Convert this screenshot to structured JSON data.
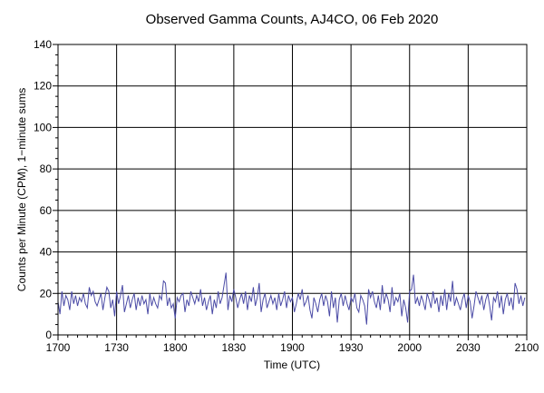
{
  "chart_data": {
    "type": "line",
    "title": "Observed Gamma Counts, AJ4CO, 06 Feb 2020",
    "xlabel": "Time (UTC)",
    "ylabel": "Counts per Minute (CPM), 1−minute sums",
    "xlim": [
      0,
      240
    ],
    "ylim": [
      0,
      140
    ],
    "x_ticks": [
      0,
      30,
      60,
      90,
      120,
      150,
      180,
      210,
      240
    ],
    "x_tick_labels": [
      "1700",
      "1730",
      "1800",
      "1830",
      "1900",
      "1930",
      "2000",
      "2030",
      "2100"
    ],
    "y_ticks": [
      0,
      20,
      40,
      60,
      80,
      100,
      120,
      140
    ],
    "y_tick_labels": [
      "0",
      "20",
      "40",
      "60",
      "80",
      "100",
      "120",
      "140"
    ],
    "grid": true,
    "legend": false,
    "colors": {
      "line": "#4b4ba6",
      "grid": "#000000",
      "axis": "#000000"
    },
    "series": [
      {
        "values": [
          16,
          10,
          21,
          14,
          19,
          17,
          12,
          21,
          15,
          19,
          14,
          18,
          16,
          20,
          15,
          13,
          23,
          19,
          21,
          16,
          14,
          17,
          20,
          12,
          18,
          23,
          21,
          13,
          17,
          9,
          21,
          15,
          19,
          24,
          11,
          15,
          19,
          13,
          17,
          20,
          12,
          18,
          14,
          19,
          15,
          17,
          10,
          20,
          14,
          18,
          15,
          13,
          19,
          17,
          26,
          25,
          14,
          18,
          13,
          15,
          8,
          18,
          16,
          19,
          20,
          11,
          17,
          14,
          21,
          18,
          15,
          19,
          16,
          22,
          14,
          18,
          12,
          16,
          19,
          10,
          17,
          13,
          21,
          15,
          18,
          24,
          30,
          12,
          19,
          16,
          22,
          18,
          13,
          17,
          20,
          15,
          21,
          12,
          19,
          16,
          23,
          14,
          18,
          25,
          11,
          17,
          20,
          13,
          16,
          19,
          15,
          18,
          12,
          20,
          14,
          17,
          21,
          13,
          19,
          16,
          18,
          11,
          15,
          20,
          17,
          22,
          14,
          16,
          19,
          12,
          8,
          18,
          15,
          11,
          17,
          20,
          14,
          19,
          16,
          9,
          21,
          13,
          18,
          6,
          17,
          20,
          14,
          19,
          15,
          12,
          18,
          16,
          20,
          13,
          11,
          19,
          17,
          14,
          5,
          22,
          18,
          21,
          16,
          13,
          19,
          12,
          24,
          15,
          20,
          17,
          11,
          23,
          14,
          18,
          16,
          20,
          9,
          17,
          13,
          6,
          21,
          22,
          29,
          15,
          18,
          14,
          19,
          16,
          12,
          20,
          17,
          13,
          21,
          15,
          18,
          11,
          19,
          14,
          22,
          12,
          20,
          16,
          26,
          14,
          18,
          15,
          12,
          17,
          20,
          13,
          19,
          16,
          8,
          14,
          21,
          18,
          15,
          19,
          12,
          17,
          20,
          14,
          7,
          18,
          16,
          21,
          13,
          19,
          10,
          17,
          20,
          14,
          18,
          12,
          25,
          22,
          15,
          19,
          14,
          18
        ]
      }
    ]
  }
}
